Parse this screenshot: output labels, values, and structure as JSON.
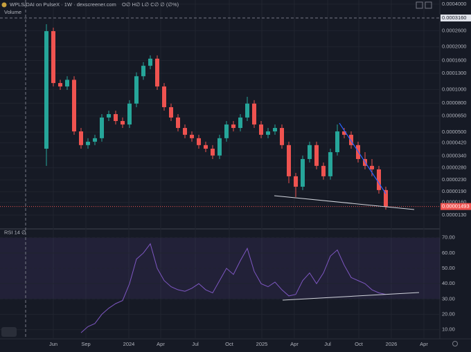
{
  "chart_data": [
    {
      "type": "candlestick",
      "title": "WPLS/DAI on PulseX · 1W · dexscreener.com",
      "ohlc_legend": "O∅ H∅ L∅ C∅ ∅ (∅%)",
      "volume_label": "Volume",
      "crosshair_label": "0.0003160",
      "last_label": "0.00001493",
      "log_scale": true,
      "up_color": "#26a69a",
      "down_color": "#ef5350",
      "time_labels": [
        "Jun",
        "Sep",
        "2024",
        "Apr",
        "Jul",
        "Oct",
        "2025",
        "Apr",
        "Jul",
        "Oct",
        "2026",
        "Apr"
      ],
      "ylim": [
        1.11e-05,
        0.000428
      ],
      "yticks": [
        {
          "value": 0.0004,
          "label": "0.0004000"
        },
        {
          "value": 0.00026,
          "label": "0.0002600"
        },
        {
          "value": 0.0002,
          "label": "0.0002000"
        },
        {
          "value": 0.00016,
          "label": "0.0001600"
        },
        {
          "value": 0.00013,
          "label": "0.0001300"
        },
        {
          "value": 0.0001,
          "label": "0.0001000"
        },
        {
          "value": 8e-05,
          "label": "0.0000800"
        },
        {
          "value": 6.5e-05,
          "label": "0.0000650"
        },
        {
          "value": 5e-05,
          "label": "0.0000500"
        },
        {
          "value": 4.2e-05,
          "label": "0.0000420"
        },
        {
          "value": 3.4e-05,
          "label": "0.0000340"
        },
        {
          "value": 2.8e-05,
          "label": "0.0000280"
        },
        {
          "value": 2.3e-05,
          "label": "0.0000230"
        },
        {
          "value": 1.9e-05,
          "label": "0.0000190"
        },
        {
          "value": 1.6e-05,
          "label": "0.0000160"
        },
        {
          "value": 1.3e-05,
          "label": "0.0000130"
        }
      ],
      "open": [
        3.82e-05,
        0.000258,
        0.000111,
        0.000105,
        0.000117,
        5.06e-05,
        4.05e-05,
        4.28e-05,
        4.53e-05,
        6.34e-05,
        6.7e-05,
        5.99e-05,
        5.66e-05,
        7.95e-05,
        0.000124,
        0.000147,
        0.000165,
        0.000105,
        7.5e-05,
        6.34e-05,
        5.35e-05,
        4.79e-05,
        4.53e-05,
        4.05e-05,
        3.82e-05,
        3.42e-05,
        4.53e-05,
        5.66e-05,
        5.35e-05,
        6.34e-05,
        7.95e-05,
        5.66e-05,
        4.79e-05,
        5.06e-05,
        5.35e-05,
        4.05e-05,
        2.44e-05,
        2.06e-05,
        3.23e-05,
        4.05e-05,
        2.89e-05,
        2.44e-05,
        3.61e-05,
        5.06e-05,
        4.79e-05,
        4.05e-05,
        3.23e-05,
        2.89e-05,
        2.73e-05,
        1.95e-05
      ],
      "high": [
        0.000289,
        0.000273,
        0.000117,
        0.000124,
        0.000124,
        5.35e-05,
        4.53e-05,
        4.79e-05,
        6.7e-05,
        7.09e-05,
        7.09e-05,
        6.34e-05,
        8.4e-05,
        0.000132,
        0.000156,
        0.000174,
        0.000174,
        0.000111,
        7.95e-05,
        6.7e-05,
        5.66e-05,
        5.06e-05,
        4.79e-05,
        4.28e-05,
        4.05e-05,
        4.79e-05,
        5.99e-05,
        5.99e-05,
        6.7e-05,
        8.88e-05,
        8.4e-05,
        5.99e-05,
        5.35e-05,
        5.66e-05,
        5.66e-05,
        4.28e-05,
        2.58e-05,
        3.42e-05,
        4.28e-05,
        4.28e-05,
        3.05e-05,
        3.82e-05,
        5.66e-05,
        5.35e-05,
        5.06e-05,
        4.28e-05,
        3.61e-05,
        3.23e-05,
        2.89e-05,
        2.06e-05
      ],
      "low": [
        2.89e-05,
        0.000105,
        9.93e-05,
        9.93e-05,
        4.79e-05,
        3.82e-05,
        3.82e-05,
        4.05e-05,
        4.28e-05,
        5.99e-05,
        5.66e-05,
        5.35e-05,
        5.35e-05,
        7.5e-05,
        0.000117,
        0.000139,
        9.93e-05,
        7.09e-05,
        5.99e-05,
        5.06e-05,
        4.53e-05,
        4.28e-05,
        3.82e-05,
        3.61e-05,
        3.23e-05,
        3.23e-05,
        4.28e-05,
        5.06e-05,
        5.06e-05,
        5.99e-05,
        5.35e-05,
        4.53e-05,
        4.53e-05,
        4.79e-05,
        3.82e-05,
        2.18e-05,
        1.74e-05,
        1.95e-05,
        3.05e-05,
        2.73e-05,
        2.31e-05,
        2.31e-05,
        3.42e-05,
        4.53e-05,
        3.82e-05,
        3.05e-05,
        2.73e-05,
        2.44e-05,
        1.84e-05,
        1.42e-05
      ],
      "close": [
        0.000258,
        0.000111,
        0.000105,
        0.000117,
        5.06e-05,
        4.05e-05,
        4.28e-05,
        4.53e-05,
        6.34e-05,
        6.7e-05,
        5.99e-05,
        5.66e-05,
        7.95e-05,
        0.000124,
        0.000147,
        0.000165,
        0.000105,
        7.5e-05,
        6.34e-05,
        5.35e-05,
        4.79e-05,
        4.53e-05,
        4.05e-05,
        3.82e-05,
        3.42e-05,
        4.53e-05,
        5.66e-05,
        5.35e-05,
        6.34e-05,
        7.95e-05,
        5.66e-05,
        4.79e-05,
        5.06e-05,
        5.35e-05,
        4.05e-05,
        2.44e-05,
        2.06e-05,
        3.23e-05,
        4.05e-05,
        2.89e-05,
        2.44e-05,
        3.61e-05,
        5.06e-05,
        4.79e-05,
        4.05e-05,
        3.23e-05,
        2.89e-05,
        2.73e-05,
        1.95e-05,
        1.493e-05
      ]
    },
    {
      "type": "line",
      "title": "RSI 14 ∅",
      "color": "#7e57c2",
      "band": [
        30,
        70
      ],
      "ylim": [
        4,
        73
      ],
      "yticks": [
        {
          "value": 70,
          "label": "70.00"
        },
        {
          "value": 60,
          "label": "60.00"
        },
        {
          "value": 50,
          "label": "50.00"
        },
        {
          "value": 40,
          "label": "40.00"
        },
        {
          "value": 30,
          "label": "30.00"
        },
        {
          "value": 20,
          "label": "20.00"
        },
        {
          "value": 10,
          "label": "10.00"
        }
      ],
      "values": [
        null,
        null,
        null,
        null,
        null,
        8,
        12,
        14,
        20,
        24,
        27,
        29,
        40,
        56,
        60,
        66,
        50,
        42,
        38,
        36,
        35,
        37,
        40,
        36,
        34,
        42,
        50,
        46,
        55,
        63,
        48,
        40,
        38,
        41,
        36,
        32,
        33,
        42,
        47,
        40,
        47,
        58,
        62,
        52,
        44,
        42,
        40,
        36,
        34,
        33
      ]
    }
  ]
}
